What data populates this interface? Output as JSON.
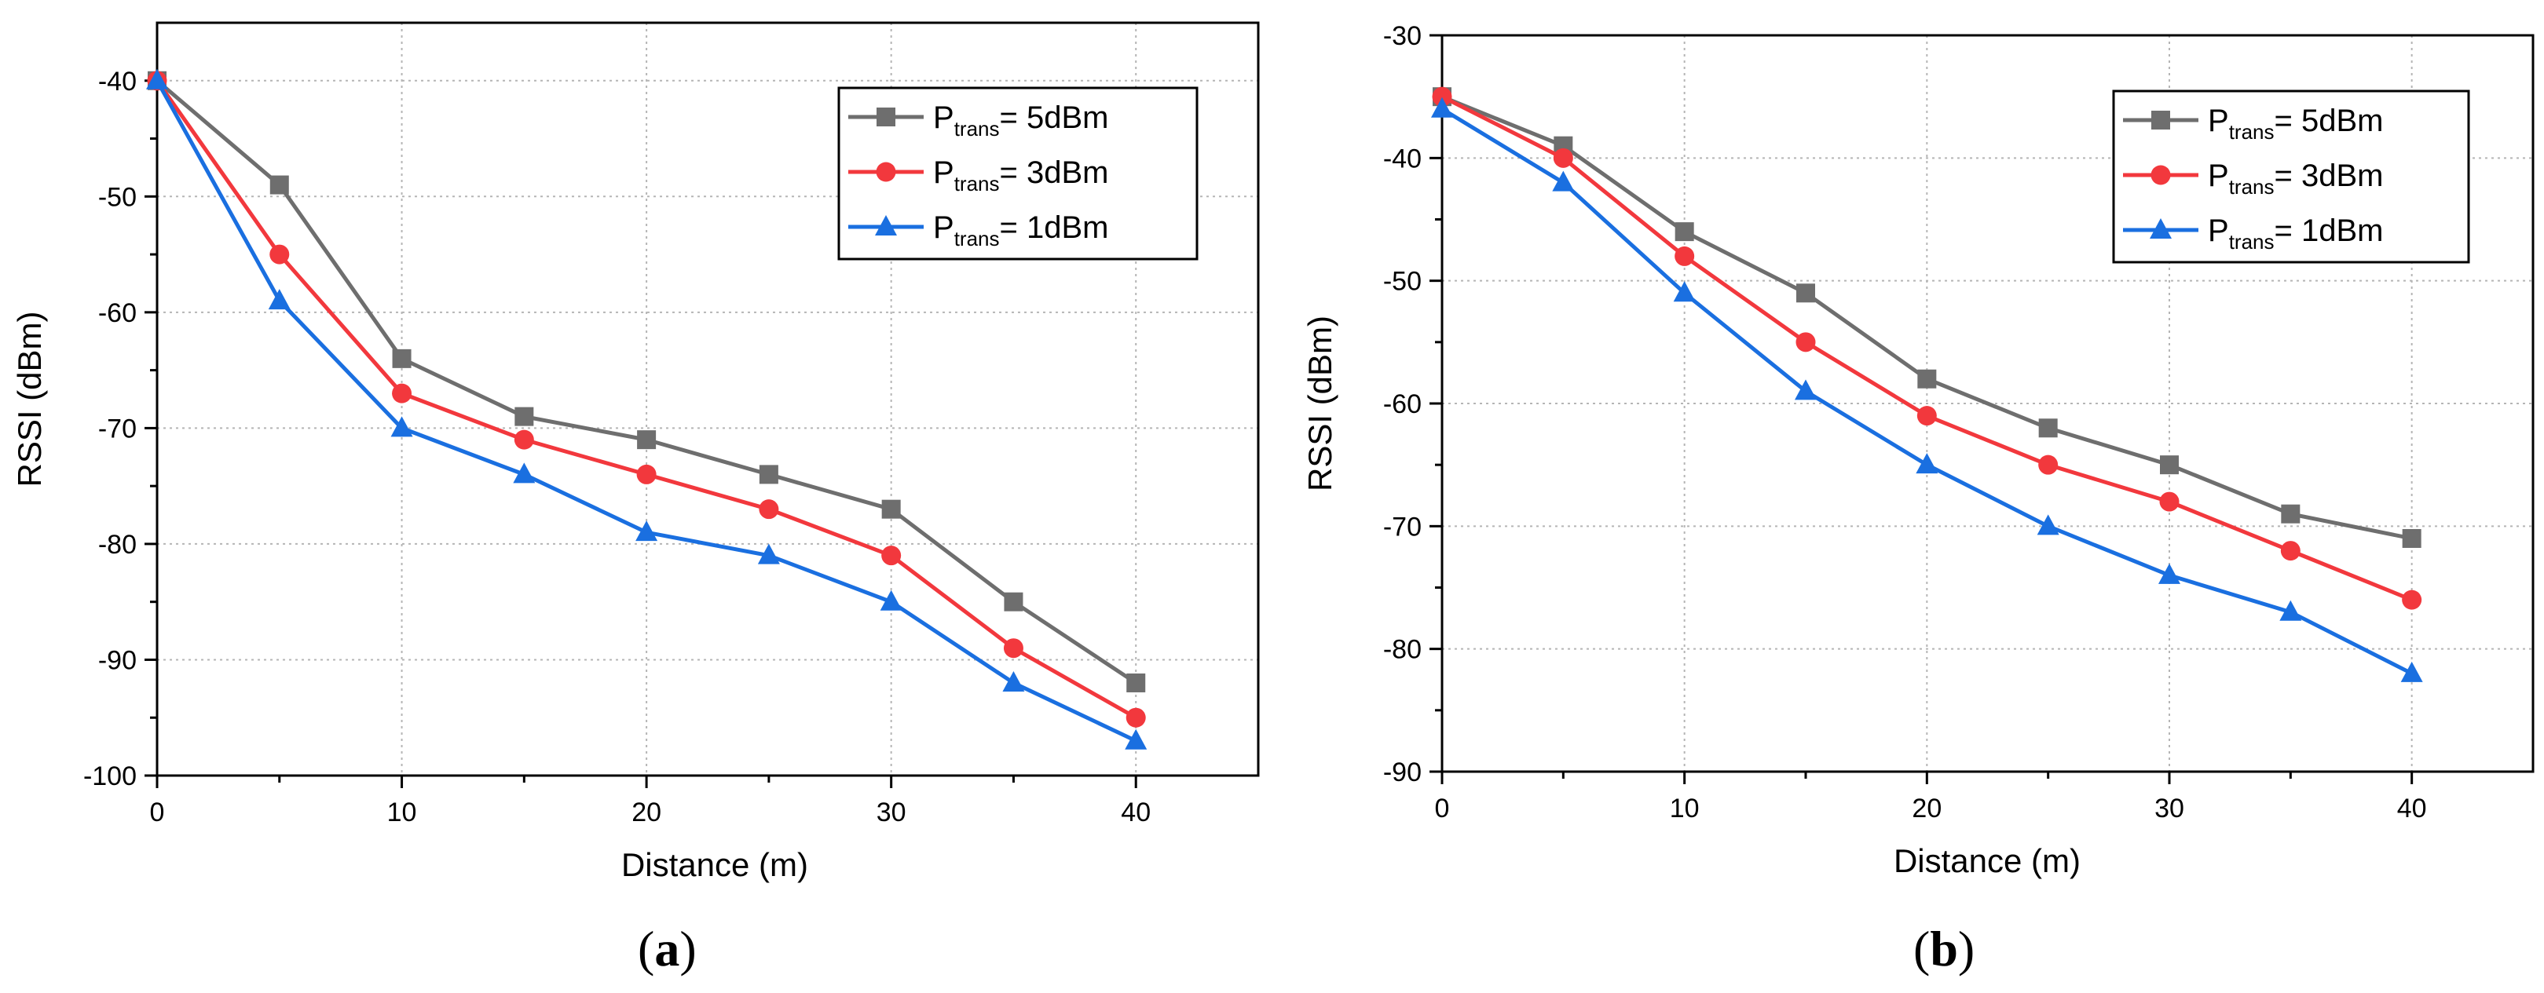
{
  "colors": {
    "series_5dBm": "#6e6e6e",
    "series_3dBm": "#f2383d",
    "series_1dBm": "#1a6fe0",
    "grid": "#b5b5b5",
    "axis": "#000000"
  },
  "chart_data": [
    {
      "type": "line",
      "panel": "a",
      "panel_label": {
        "open": "(",
        "letter": "a",
        "close": ")"
      },
      "xlabel": "Distance (m)",
      "ylabel": "RSSI (dBm)",
      "xlim": [
        0,
        45
      ],
      "ylim": [
        -100,
        -35
      ],
      "xticks": [
        0,
        10,
        20,
        30,
        40
      ],
      "yticks": [
        -100,
        -90,
        -80,
        -70,
        -60,
        -50,
        -40
      ],
      "grid": true,
      "legend_position": "top-right",
      "x": [
        0,
        5,
        10,
        15,
        20,
        25,
        30,
        35,
        40
      ],
      "series": [
        {
          "name": "Ptrans= 5dBm",
          "prefix": "P",
          "sub": "trans",
          "suffix": "= 5dBm",
          "marker": "square",
          "color_key": "series_5dBm",
          "values": [
            -40,
            -49,
            -64,
            -69,
            -71,
            -74,
            -77,
            -85,
            -92
          ]
        },
        {
          "name": "Ptrans= 3dBm",
          "prefix": "P",
          "sub": "trans",
          "suffix": "= 3dBm",
          "marker": "circle",
          "color_key": "series_3dBm",
          "values": [
            -40,
            -55,
            -67,
            -71,
            -74,
            -77,
            -81,
            -89,
            -95
          ]
        },
        {
          "name": "Ptrans= 1dBm",
          "prefix": "P",
          "sub": "trans",
          "suffix": "= 1dBm",
          "marker": "triangle",
          "color_key": "series_1dBm",
          "values": [
            -40,
            -59,
            -70,
            -74,
            -79,
            -81,
            -85,
            -92,
            -97
          ]
        }
      ]
    },
    {
      "type": "line",
      "panel": "b",
      "panel_label": {
        "open": "(",
        "letter": "b",
        "close": ")"
      },
      "xlabel": "Distance (m)",
      "ylabel": "RSSI (dBm)",
      "xlim": [
        0,
        45
      ],
      "ylim": [
        -90,
        -30
      ],
      "xticks": [
        0,
        10,
        20,
        30,
        40
      ],
      "yticks": [
        -90,
        -80,
        -70,
        -60,
        -50,
        -40,
        -30
      ],
      "grid": true,
      "legend_position": "top-right",
      "x": [
        0,
        5,
        10,
        15,
        20,
        25,
        30,
        35,
        40
      ],
      "series": [
        {
          "name": "Ptrans= 5dBm",
          "prefix": "P",
          "sub": "trans",
          "suffix": "= 5dBm",
          "marker": "square",
          "color_key": "series_5dBm",
          "values": [
            -35,
            -39,
            -46,
            -51,
            -58,
            -62,
            -65,
            -69,
            -71
          ]
        },
        {
          "name": "Ptrans= 3dBm",
          "prefix": "P",
          "sub": "trans",
          "suffix": "= 3dBm",
          "marker": "circle",
          "color_key": "series_3dBm",
          "values": [
            -35,
            -40,
            -48,
            -55,
            -61,
            -65,
            -68,
            -72,
            -76
          ]
        },
        {
          "name": "Ptrans= 1dBm",
          "prefix": "P",
          "sub": "trans",
          "suffix": "= 1dBm",
          "marker": "triangle",
          "color_key": "series_1dBm",
          "values": [
            -36,
            -42,
            -51,
            -59,
            -65,
            -70,
            -74,
            -77,
            -82
          ]
        }
      ]
    }
  ]
}
